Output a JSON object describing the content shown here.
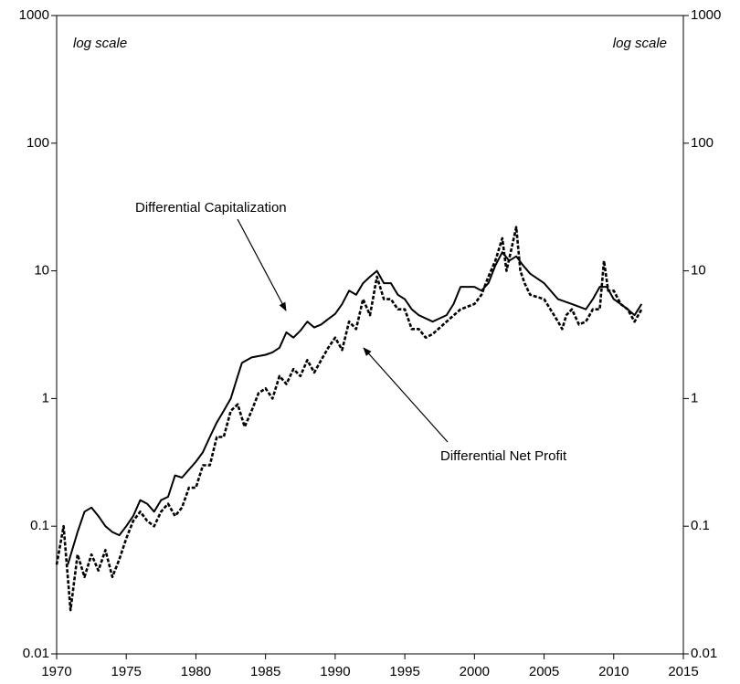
{
  "chart_data": {
    "type": "line",
    "yscale": "log",
    "annotations": [
      "log scale",
      "log scale",
      "Differential Capitalization",
      "Differential Net Profit"
    ],
    "xlim": [
      1970,
      2015
    ],
    "xticks": [
      1970,
      1975,
      1980,
      1985,
      1990,
      1995,
      2000,
      2005,
      2010,
      2015
    ],
    "ylim": [
      0.01,
      1000
    ],
    "yticks": [
      0.01,
      0.1,
      1,
      10,
      100,
      1000
    ],
    "y2lim": [
      0.01,
      1000
    ],
    "y2ticks": [
      0.01,
      0.1,
      1,
      10,
      100,
      1000
    ],
    "series": [
      {
        "name": "Differential Capitalization",
        "color": "#000",
        "dash": false,
        "x": [
          1970.8,
          1971.5,
          1972,
          1972.5,
          1973,
          1973.5,
          1974,
          1974.5,
          1975,
          1975.5,
          1976,
          1976.5,
          1977,
          1977.5,
          1978,
          1978.5,
          1979,
          1980,
          1980.5,
          1981,
          1981.5,
          1982,
          1982.5,
          1983,
          1983.3,
          1984,
          1985,
          1985.5,
          1986,
          1986.5,
          1987,
          1987.5,
          1988,
          1988.5,
          1989,
          1989.5,
          1990,
          1990.5,
          1991,
          1991.5,
          1992,
          1992.5,
          1993,
          1993.5,
          1994,
          1994.5,
          1995,
          1995.5,
          1996,
          1997,
          1998,
          1998.5,
          1999,
          2000,
          2000.5,
          2001,
          2001.5,
          2002,
          2002.5,
          2003,
          2003.5,
          2004,
          2005,
          2006,
          2007,
          2008,
          2008.5,
          2009,
          2009.5,
          2010,
          2010.5,
          2011,
          2011.5,
          2012
        ],
        "values": [
          0.05,
          0.09,
          0.13,
          0.14,
          0.12,
          0.1,
          0.09,
          0.085,
          0.1,
          0.12,
          0.16,
          0.15,
          0.13,
          0.16,
          0.17,
          0.25,
          0.24,
          0.32,
          0.38,
          0.5,
          0.65,
          0.8,
          1.0,
          1.5,
          1.9,
          2.1,
          2.2,
          2.3,
          2.5,
          3.3,
          3.0,
          3.4,
          4.0,
          3.6,
          3.8,
          4.2,
          4.6,
          5.5,
          7.0,
          6.5,
          8.0,
          9.0,
          10.0,
          8.0,
          8.0,
          6.5,
          6.0,
          5.0,
          4.5,
          4.0,
          4.5,
          5.5,
          7.5,
          7.5,
          7.0,
          8.0,
          11,
          14,
          12,
          13,
          11,
          9.5,
          8.0,
          6.0,
          5.5,
          5.0,
          6.0,
          7.5,
          7.5,
          6.0,
          5.5,
          5.0,
          4.5,
          5.5
        ]
      },
      {
        "name": "Differential Net Profit",
        "color": "#000",
        "dash": true,
        "x": [
          1970,
          1970.5,
          1971,
          1971.5,
          1972,
          1972.5,
          1973,
          1973.5,
          1974,
          1974.5,
          1975,
          1975.5,
          1976,
          1976.5,
          1977,
          1977.5,
          1978,
          1978.5,
          1979,
          1979.5,
          1980,
          1980.5,
          1981,
          1981.5,
          1982,
          1982.5,
          1983,
          1983.5,
          1984,
          1984.5,
          1985,
          1985.5,
          1986,
          1986.5,
          1987,
          1987.5,
          1988,
          1988.5,
          1989,
          1989.5,
          1990,
          1990.5,
          1991,
          1991.5,
          1992,
          1992.5,
          1993,
          1993.5,
          1994,
          1994.5,
          1995,
          1995.5,
          1996,
          1996.5,
          1997,
          1998,
          1999,
          2000,
          2000.5,
          2001,
          2001.5,
          2002,
          2002.3,
          2002.6,
          2003,
          2003.3,
          2003.6,
          2004,
          2005,
          2006,
          2006.3,
          2006.6,
          2007,
          2007.5,
          2008,
          2008.5,
          2009,
          2009.3,
          2009.6,
          2010,
          2010.5,
          2011,
          2011.5,
          2012
        ],
        "values": [
          0.05,
          0.1,
          0.022,
          0.06,
          0.04,
          0.06,
          0.045,
          0.065,
          0.04,
          0.055,
          0.08,
          0.11,
          0.13,
          0.11,
          0.1,
          0.13,
          0.15,
          0.12,
          0.14,
          0.2,
          0.2,
          0.3,
          0.3,
          0.5,
          0.5,
          0.8,
          0.9,
          0.6,
          0.8,
          1.1,
          1.2,
          1.0,
          1.5,
          1.3,
          1.7,
          1.5,
          2.0,
          1.6,
          2.0,
          2.5,
          3.0,
          2.4,
          4.0,
          3.5,
          6.0,
          4.5,
          9.0,
          6.0,
          6.0,
          5.0,
          5.0,
          3.5,
          3.5,
          3.0,
          3.2,
          4.0,
          5.0,
          5.5,
          6.5,
          9.0,
          12,
          18,
          10,
          14,
          22,
          10,
          8.0,
          6.5,
          6.0,
          4.0,
          3.5,
          4.5,
          5.0,
          3.8,
          4.0,
          5.0,
          5.0,
          12,
          7.0,
          7.0,
          5.5,
          5.0,
          4.0,
          5.0
        ]
      }
    ]
  }
}
